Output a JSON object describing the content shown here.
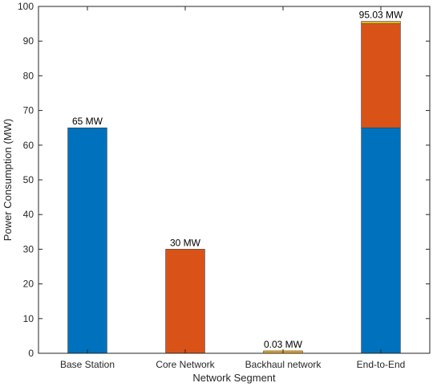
{
  "chart_data": {
    "type": "bar",
    "stacked": true,
    "categories": [
      "Base Station",
      "Core Network",
      "Backhaul network",
      "End-to-End"
    ],
    "series": [
      {
        "color": "#0072BD",
        "values": [
          65,
          0,
          0,
          65
        ]
      },
      {
        "color": "#D95319",
        "values": [
          0,
          30,
          0,
          30
        ]
      },
      {
        "color": "#EDB120",
        "values": [
          0,
          0,
          0.03,
          0.03
        ]
      }
    ],
    "data_labels": [
      "65 MW",
      "30 MW",
      "0.03 MW",
      "95.03 MW"
    ],
    "xlabel": "Network Segment",
    "ylabel": "Power Consumption (MW)",
    "ylim": [
      0,
      100
    ],
    "yticks": [
      0,
      10,
      20,
      30,
      40,
      50,
      60,
      70,
      80,
      90,
      100
    ],
    "grid": false,
    "legend": "none"
  }
}
